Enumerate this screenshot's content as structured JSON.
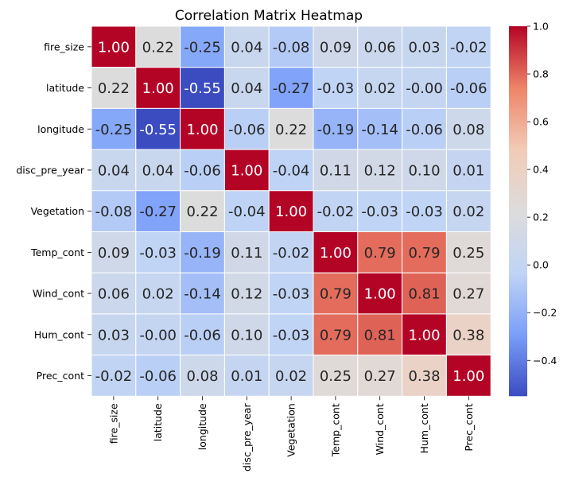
{
  "chart_data": {
    "type": "heatmap",
    "title": "Correlation Matrix Heatmap",
    "labels": [
      "fire_size",
      "latitude",
      "longitude",
      "disc_pre_year",
      "Vegetation",
      "Temp_cont",
      "Wind_cont",
      "Hum_cont",
      "Prec_cont"
    ],
    "values": [
      [
        1.0,
        0.22,
        -0.25,
        0.04,
        -0.08,
        0.09,
        0.06,
        0.03,
        -0.02
      ],
      [
        0.22,
        1.0,
        -0.55,
        0.04,
        -0.27,
        -0.03,
        0.02,
        -0.0,
        -0.06
      ],
      [
        -0.25,
        -0.55,
        1.0,
        -0.06,
        0.22,
        -0.19,
        -0.14,
        -0.06,
        0.08
      ],
      [
        0.04,
        0.04,
        -0.06,
        1.0,
        -0.04,
        0.11,
        0.12,
        0.1,
        0.01
      ],
      [
        -0.08,
        -0.27,
        0.22,
        -0.04,
        1.0,
        -0.02,
        -0.03,
        -0.03,
        0.02
      ],
      [
        0.09,
        -0.03,
        -0.19,
        0.11,
        -0.02,
        1.0,
        0.79,
        0.79,
        0.25
      ],
      [
        0.06,
        0.02,
        -0.14,
        0.12,
        -0.03,
        0.79,
        1.0,
        0.81,
        0.27
      ],
      [
        0.03,
        -0.0,
        -0.06,
        0.1,
        -0.03,
        0.79,
        0.81,
        1.0,
        0.38
      ],
      [
        -0.02,
        -0.06,
        0.08,
        0.01,
        0.02,
        0.25,
        0.27,
        0.38,
        1.0
      ]
    ],
    "cell_labels": [
      [
        "1.00",
        "0.22",
        "-0.25",
        "0.04",
        "-0.08",
        "0.09",
        "0.06",
        "0.03",
        "-0.02"
      ],
      [
        "0.22",
        "1.00",
        "-0.55",
        "0.04",
        "-0.27",
        "-0.03",
        "0.02",
        "-0.00",
        "-0.06"
      ],
      [
        "-0.25",
        "-0.55",
        "1.00",
        "-0.06",
        "0.22",
        "-0.19",
        "-0.14",
        "-0.06",
        "0.08"
      ],
      [
        "0.04",
        "0.04",
        "-0.06",
        "1.00",
        "-0.04",
        "0.11",
        "0.12",
        "0.10",
        "0.01"
      ],
      [
        "-0.08",
        "-0.27",
        "0.22",
        "-0.04",
        "1.00",
        "-0.02",
        "-0.03",
        "-0.03",
        "0.02"
      ],
      [
        "0.09",
        "-0.03",
        "-0.19",
        "0.11",
        "-0.02",
        "1.00",
        "0.79",
        "0.79",
        "0.25"
      ],
      [
        "0.06",
        "0.02",
        "-0.14",
        "0.12",
        "-0.03",
        "0.79",
        "1.00",
        "0.81",
        "0.27"
      ],
      [
        "0.03",
        "-0.00",
        "-0.06",
        "0.10",
        "-0.03",
        "0.79",
        "0.81",
        "1.00",
        "0.38"
      ],
      [
        "-0.02",
        "-0.06",
        "0.08",
        "0.01",
        "0.02",
        "0.25",
        "0.27",
        "0.38",
        "1.00"
      ]
    ],
    "colormap": "coolwarm",
    "colormap_stops": [
      "#3b4cc0",
      "#7b9ff9",
      "#c0d4f5",
      "#dddcdc",
      "#f2cbb7",
      "#ee8468",
      "#b40426"
    ],
    "vmin": -0.55,
    "vmax": 1.0,
    "colorbar_ticks": [
      -0.4,
      -0.2,
      0.0,
      0.2,
      0.4,
      0.6,
      0.8,
      1.0
    ],
    "colorbar_tick_labels": [
      "−0.4",
      "−0.2",
      "0.0",
      "0.2",
      "0.4",
      "0.6",
      "0.8",
      "1.0"
    ],
    "colorbar_placement": "right",
    "cell_borders": "#ffffff",
    "grid": false
  }
}
